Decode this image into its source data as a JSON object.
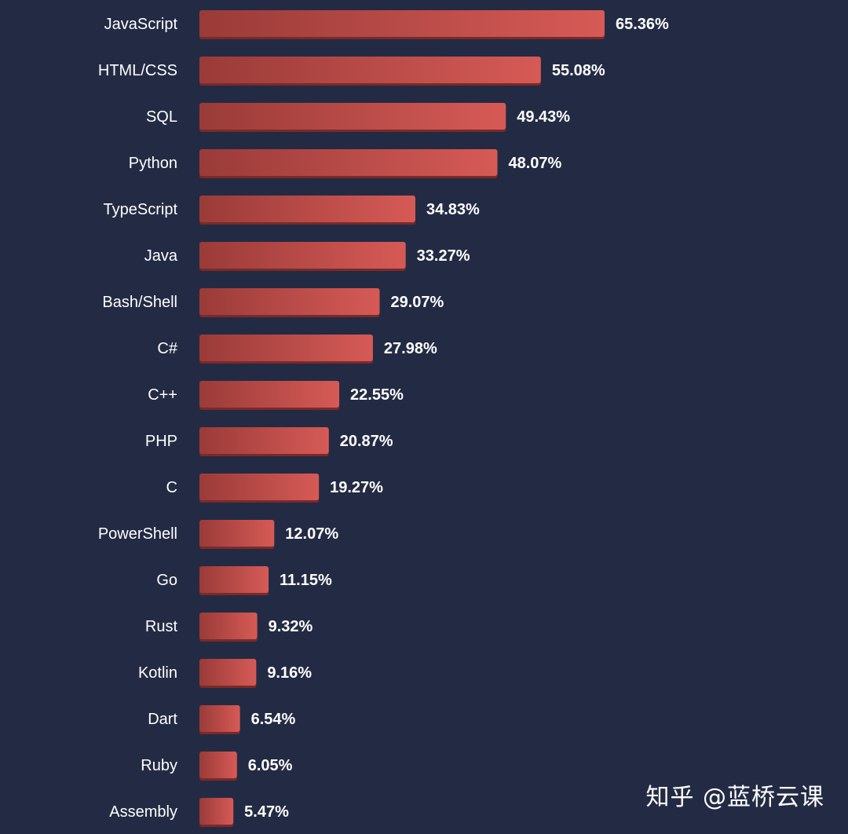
{
  "chart_data": {
    "type": "bar",
    "orientation": "horizontal",
    "categories": [
      "JavaScript",
      "HTML/CSS",
      "SQL",
      "Python",
      "TypeScript",
      "Java",
      "Bash/Shell",
      "C#",
      "C++",
      "PHP",
      "C",
      "PowerShell",
      "Go",
      "Rust",
      "Kotlin",
      "Dart",
      "Ruby",
      "Assembly"
    ],
    "values": [
      65.36,
      55.08,
      49.43,
      48.07,
      34.83,
      33.27,
      29.07,
      27.98,
      22.55,
      20.87,
      19.27,
      12.07,
      11.15,
      9.32,
      9.16,
      6.54,
      6.05,
      5.47
    ],
    "value_labels": [
      "65.36%",
      "55.08%",
      "49.43%",
      "48.07%",
      "34.83%",
      "33.27%",
      "29.07%",
      "27.98%",
      "22.55%",
      "20.87%",
      "19.27%",
      "12.07%",
      "11.15%",
      "9.32%",
      "9.16%",
      "6.54%",
      "6.05%",
      "5.47%"
    ],
    "title": "",
    "xlabel": "",
    "ylabel": "",
    "grid": false,
    "legend": "none",
    "colors": {
      "background": "#232b44",
      "bar_start": "#9a3b38",
      "bar_end": "#d65a56",
      "bar_shadow": "#7a2a28",
      "text": "#ffffff"
    }
  },
  "watermark": "知乎 @蓝桥云课"
}
